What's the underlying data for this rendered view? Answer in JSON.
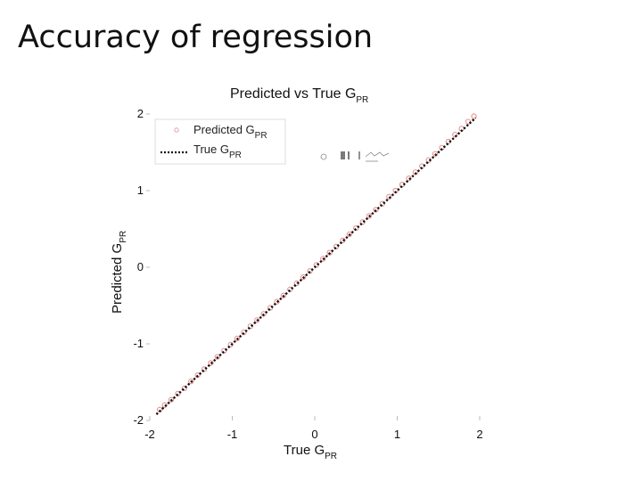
{
  "slide": {
    "title": "Accuracy of regression"
  },
  "chart_data": {
    "type": "scatter",
    "title_main": "Predicted vs True G",
    "title_sub": "PR",
    "xlabel_main": "True G",
    "xlabel_sub": "PR",
    "ylabel_main": "Predicted G",
    "ylabel_sub": "PR",
    "xlim": [
      -2,
      2
    ],
    "ylim": [
      -2,
      2
    ],
    "xticks": [
      -2,
      -1,
      0,
      1,
      2
    ],
    "yticks": [
      -2,
      -1,
      0,
      1,
      2
    ],
    "xtick_labels": [
      "-2",
      "-1",
      "0",
      "1",
      "2"
    ],
    "ytick_labels": [
      "-2",
      "-1",
      "0",
      "1",
      "2"
    ],
    "grid": false,
    "legend_position": "top-left",
    "series": [
      {
        "name_main": "Predicted G",
        "name_sub": "PR",
        "kind": "scatter",
        "color": "#e06a6a",
        "x": [
          -1.88,
          -1.82,
          -1.74,
          -1.66,
          -1.58,
          -1.5,
          -1.42,
          -1.34,
          -1.26,
          -1.18,
          -1.1,
          -1.02,
          -0.94,
          -0.86,
          -0.78,
          -0.7,
          -0.62,
          -0.54,
          -0.46,
          -0.38,
          -0.3,
          -0.22,
          -0.14,
          -0.06,
          0.02,
          0.1,
          0.18,
          0.26,
          0.34,
          0.42,
          0.5,
          0.58,
          0.66,
          0.74,
          0.82,
          0.9,
          0.98,
          1.06,
          1.14,
          1.22,
          1.3,
          1.38,
          1.46,
          1.54,
          1.62,
          1.7,
          1.78,
          1.86,
          1.93
        ],
        "y": [
          -1.86,
          -1.8,
          -1.73,
          -1.65,
          -1.58,
          -1.49,
          -1.41,
          -1.33,
          -1.25,
          -1.17,
          -1.09,
          -1.01,
          -0.93,
          -0.85,
          -0.77,
          -0.69,
          -0.61,
          -0.53,
          -0.45,
          -0.37,
          -0.29,
          -0.21,
          -0.13,
          -0.05,
          0.03,
          0.11,
          0.19,
          0.27,
          0.35,
          0.43,
          0.51,
          0.59,
          0.67,
          0.75,
          0.83,
          0.92,
          1.0,
          1.08,
          1.16,
          1.24,
          1.32,
          1.4,
          1.48,
          1.56,
          1.64,
          1.73,
          1.81,
          1.9,
          1.97
        ]
      },
      {
        "name_main": "True G",
        "name_sub": "PR",
        "kind": "line",
        "style": "dotted",
        "color": "#111111",
        "x": [
          -1.92,
          1.95
        ],
        "y": [
          -1.92,
          1.95
        ]
      }
    ]
  }
}
